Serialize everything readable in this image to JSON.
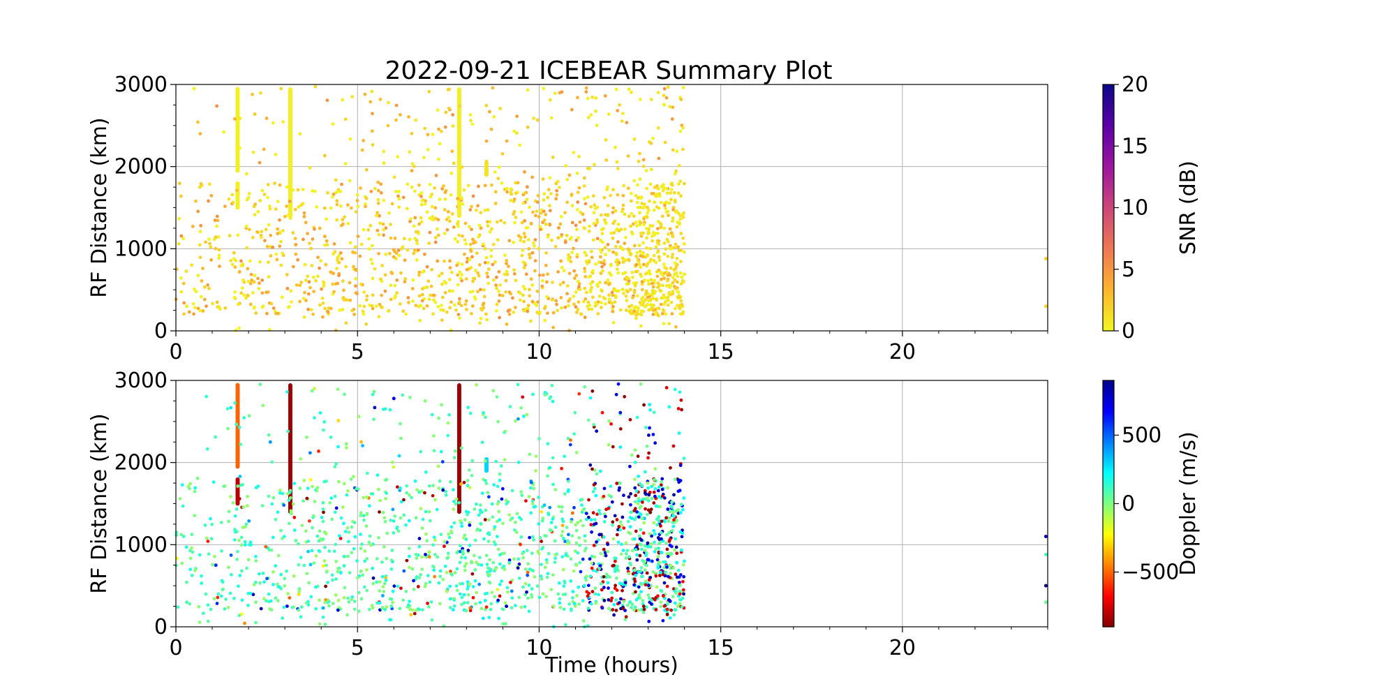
{
  "figure": {
    "title": "2022-09-21 ICEBEAR Summary Plot"
  },
  "chart_data": [
    {
      "type": "scatter",
      "title": "2022-09-21 ICEBEAR Summary Plot",
      "xlabel": "",
      "ylabel": "RF Distance (km)",
      "xlim": [
        0,
        24
      ],
      "ylim": [
        0,
        3000
      ],
      "x_ticks": [
        "0",
        "5",
        "10",
        "15",
        "20"
      ],
      "y_ticks": [
        "0",
        "1000",
        "2000",
        "3000"
      ],
      "grid": true,
      "color_variable": "SNR",
      "colorbar": {
        "label": "SNR (dB)",
        "range": [
          0,
          20
        ],
        "ticks": [
          "0",
          "5",
          "10",
          "15",
          "20"
        ],
        "colormap": "plasma_r",
        "colors": [
          "#f0f921",
          "#fdb42f",
          "#ed7953",
          "#cc4778",
          "#9c179e",
          "#5c01a6",
          "#0d0887"
        ]
      },
      "streaks": [
        {
          "x": 1.7,
          "y_from": 1500,
          "y_to": 1800,
          "value": 0.5
        },
        {
          "x": 1.7,
          "y_from": 1950,
          "y_to": 2950,
          "value": 0.5
        },
        {
          "x": 3.15,
          "y_from": 1400,
          "y_to": 2950,
          "value": 0.5
        },
        {
          "x": 7.8,
          "y_from": 1400,
          "y_to": 2950,
          "value": 0.5
        },
        {
          "x": 8.55,
          "y_from": 1900,
          "y_to": 2050,
          "value": 1.0
        }
      ],
      "points": [
        [
          0.3,
          300,
          0.5
        ],
        [
          0.5,
          2950,
          0.3
        ],
        [
          1.1,
          1140,
          2.5
        ],
        [
          1.6,
          950,
          2.0
        ],
        [
          2.4,
          300,
          1.0
        ],
        [
          2.8,
          1240,
          3.0
        ],
        [
          3.3,
          1050,
          4.0
        ],
        [
          4.1,
          1150,
          3.5
        ],
        [
          4.6,
          1300,
          3.0
        ],
        [
          5.6,
          1400,
          4.5
        ],
        [
          6.0,
          900,
          3.5
        ],
        [
          6.7,
          1300,
          3.0
        ],
        [
          7.2,
          850,
          4.0
        ],
        [
          7.5,
          1450,
          3.0
        ],
        [
          8.4,
          1250,
          3.5
        ],
        [
          9.1,
          820,
          4.0
        ],
        [
          9.6,
          1340,
          4.5
        ],
        [
          10.1,
          1320,
          4.0
        ],
        [
          10.6,
          850,
          3.5
        ],
        [
          11.2,
          1420,
          3.0
        ],
        [
          11.7,
          700,
          2.5
        ],
        [
          12.2,
          1220,
          2.0
        ],
        [
          12.9,
          1320,
          2.5
        ],
        [
          13.3,
          900,
          2.0
        ],
        [
          13.7,
          1500,
          2.0
        ],
        [
          23.95,
          880,
          2.0
        ],
        [
          23.95,
          300,
          1.5
        ]
      ],
      "noise": {
        "seed": 11,
        "value_range": [
          0.2,
          5.5
        ]
      }
    },
    {
      "type": "scatter",
      "title": "",
      "xlabel": "Time (hours)",
      "ylabel": "RF Distance (km)",
      "xlim": [
        0,
        24
      ],
      "ylim": [
        0,
        3000
      ],
      "x_ticks": [
        "0",
        "5",
        "10",
        "15",
        "20"
      ],
      "y_ticks": [
        "0",
        "1000",
        "2000",
        "3000"
      ],
      "grid": true,
      "color_variable": "Doppler",
      "colorbar": {
        "label": "Doppler (m/s)",
        "range": [
          -900,
          900
        ],
        "tick_values": [
          -500,
          0,
          500
        ],
        "ticks": [
          "−500",
          "0",
          "500"
        ],
        "colormap": "jet_r",
        "colors": [
          "#800000",
          "#ff0000",
          "#ff8000",
          "#ffff00",
          "#80ff80",
          "#00ffff",
          "#0080ff",
          "#0000ff",
          "#00008b"
        ]
      },
      "streaks": [
        {
          "x": 1.7,
          "y_from": 1500,
          "y_to": 1800,
          "value": -800
        },
        {
          "x": 1.7,
          "y_from": 1950,
          "y_to": 2950,
          "value": -500
        },
        {
          "x": 3.15,
          "y_from": 1400,
          "y_to": 2950,
          "value": -850
        },
        {
          "x": 7.8,
          "y_from": 1400,
          "y_to": 2950,
          "value": -850
        },
        {
          "x": 8.55,
          "y_from": 1900,
          "y_to": 2050,
          "value": 300
        }
      ],
      "points": [
        [
          0.3,
          300,
          100
        ],
        [
          1.1,
          750,
          600
        ],
        [
          2.2,
          300,
          0
        ],
        [
          2.6,
          2250,
          400
        ],
        [
          3.3,
          1050,
          50
        ],
        [
          4.1,
          1150,
          0
        ],
        [
          5.6,
          300,
          -700
        ],
        [
          6.0,
          2780,
          700
        ],
        [
          7.2,
          850,
          50
        ],
        [
          8.4,
          1250,
          0
        ],
        [
          9.1,
          250,
          800
        ],
        [
          10.1,
          1320,
          0
        ],
        [
          11.2,
          1420,
          -200
        ],
        [
          11.7,
          700,
          850
        ],
        [
          12.2,
          1220,
          -800
        ],
        [
          12.9,
          1320,
          300
        ],
        [
          13.3,
          900,
          -850
        ],
        [
          13.7,
          1500,
          600
        ],
        [
          23.95,
          880,
          100
        ],
        [
          23.95,
          1100,
          800
        ],
        [
          23.95,
          500,
          900
        ],
        [
          23.95,
          300,
          50
        ]
      ],
      "noise": {
        "seed": 23,
        "value_range": [
          -900,
          900
        ]
      }
    }
  ]
}
